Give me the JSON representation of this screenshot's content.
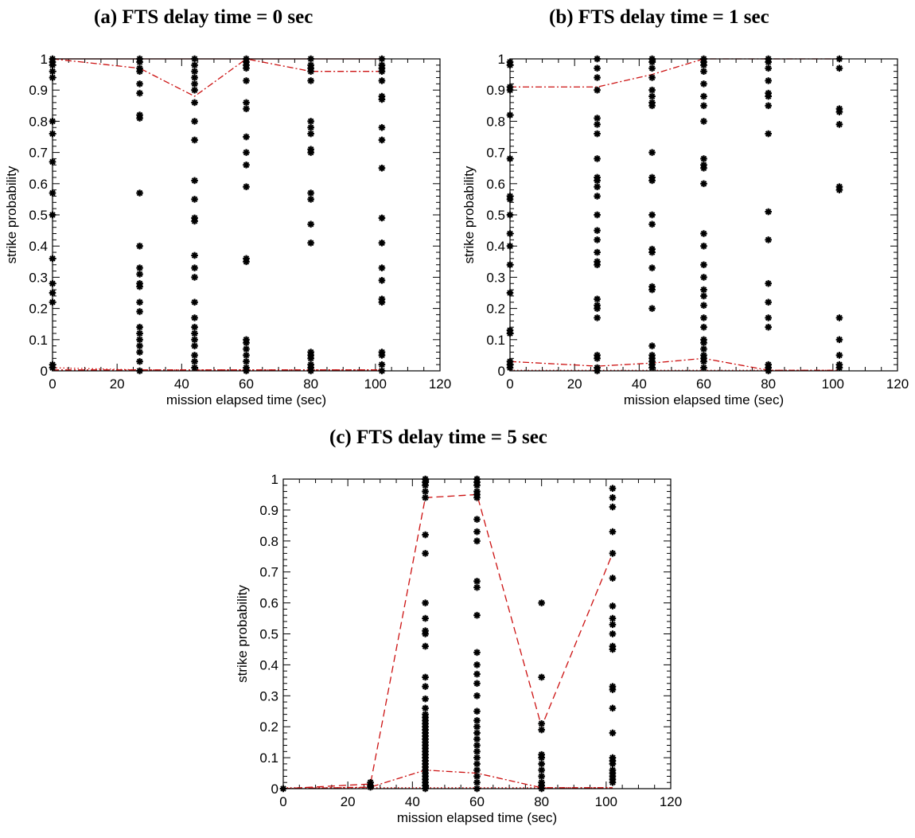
{
  "colors": {
    "points": "#000000",
    "lines": "#cc1111",
    "axes": "#000000"
  },
  "chart_data": [
    {
      "type": "scatter",
      "title": "(a)  FTS delay time = 0 sec",
      "xlabel": "mission elapsed time (sec)",
      "ylabel": "strike probability",
      "xlim": [
        0,
        120
      ],
      "ylim": [
        0,
        1
      ],
      "x_ticks": [
        "0",
        "20",
        "40",
        "60",
        "80",
        "100",
        "120"
      ],
      "y_ticks": [
        "0",
        "0.1",
        "0.2",
        "0.3",
        "0.4",
        "0.5",
        "0.6",
        "0.7",
        "0.8",
        "0.9",
        "1"
      ],
      "grid": false,
      "point_series": [
        {
          "x": 0,
          "y": [
            1.0,
            0.99,
            0.98,
            0.96,
            0.94,
            0.8,
            0.76,
            0.67,
            0.57,
            0.5,
            0.36,
            0.28,
            0.25,
            0.22,
            0.02,
            0.01
          ]
        },
        {
          "x": 27,
          "y": [
            1.0,
            0.99,
            0.97,
            0.96,
            0.92,
            0.89,
            0.82,
            0.81,
            0.57,
            0.4,
            0.33,
            0.31,
            0.28,
            0.27,
            0.22,
            0.19,
            0.14,
            0.12,
            0.1,
            0.08,
            0.06,
            0.03,
            0.0
          ]
        },
        {
          "x": 44,
          "y": [
            1.0,
            0.98,
            0.96,
            0.94,
            0.92,
            0.9,
            0.86,
            0.8,
            0.74,
            0.61,
            0.55,
            0.49,
            0.48,
            0.37,
            0.33,
            0.3,
            0.22,
            0.17,
            0.14,
            0.12,
            0.1,
            0.08,
            0.05,
            0.03,
            0.01
          ]
        },
        {
          "x": 60,
          "y": [
            1.0,
            0.99,
            0.98,
            0.97,
            0.93,
            0.86,
            0.84,
            0.75,
            0.7,
            0.66,
            0.59,
            0.36,
            0.35,
            0.1,
            0.09,
            0.07,
            0.05,
            0.03,
            0.01,
            0.0
          ]
        },
        {
          "x": 80,
          "y": [
            1.0,
            0.98,
            0.97,
            0.96,
            0.93,
            0.8,
            0.78,
            0.76,
            0.71,
            0.7,
            0.57,
            0.55,
            0.47,
            0.41,
            0.06,
            0.05,
            0.04,
            0.02,
            0.01,
            0.0
          ]
        },
        {
          "x": 102,
          "y": [
            1.0,
            0.98,
            0.97,
            0.96,
            0.93,
            0.88,
            0.87,
            0.78,
            0.74,
            0.65,
            0.49,
            0.41,
            0.33,
            0.29,
            0.23,
            0.22,
            0.06,
            0.05,
            0.02,
            0.0
          ]
        }
      ],
      "lines": [
        {
          "style": "dashdot",
          "x": [
            0,
            27,
            44,
            60,
            80,
            102
          ],
          "y": [
            1.0,
            0.97,
            0.88,
            1.0,
            0.96,
            0.96
          ]
        },
        {
          "style": "solid",
          "x": [
            0,
            27,
            44,
            60,
            80,
            102
          ],
          "y": [
            1.0,
            1.0,
            1.0,
            1.0,
            1.0,
            1.0
          ]
        },
        {
          "style": "dotted",
          "x": [
            0,
            27,
            44,
            60,
            80,
            102
          ],
          "y": [
            0.01,
            0.003,
            0.003,
            0.003,
            0.003,
            0.003
          ]
        },
        {
          "style": "dashdot",
          "x": [
            0,
            27,
            44,
            60,
            80,
            102
          ],
          "y": [
            0.003,
            0.003,
            0.003,
            0.003,
            0.003,
            0.003
          ]
        }
      ]
    },
    {
      "type": "scatter",
      "title": "(b)  FTS delay time = 1 sec",
      "xlabel": "mission elapsed time (sec)",
      "ylabel": "strike probability",
      "xlim": [
        0,
        120
      ],
      "ylim": [
        0,
        1
      ],
      "x_ticks": [
        "0",
        "20",
        "40",
        "60",
        "80",
        "100",
        "120"
      ],
      "y_ticks": [
        "0",
        "0.1",
        "0.2",
        "0.3",
        "0.4",
        "0.5",
        "0.6",
        "0.7",
        "0.8",
        "0.9",
        "1"
      ],
      "grid": false,
      "point_series": [
        {
          "x": 0,
          "y": [
            0.99,
            0.98,
            0.91,
            0.9,
            0.82,
            0.68,
            0.56,
            0.55,
            0.5,
            0.44,
            0.4,
            0.34,
            0.25,
            0.13,
            0.12,
            0.03,
            0.02,
            0.01
          ]
        },
        {
          "x": 27,
          "y": [
            1.0,
            0.97,
            0.94,
            0.9,
            0.81,
            0.79,
            0.76,
            0.68,
            0.62,
            0.61,
            0.59,
            0.56,
            0.5,
            0.45,
            0.42,
            0.38,
            0.35,
            0.34,
            0.23,
            0.21,
            0.2,
            0.17,
            0.05,
            0.04,
            0.01,
            0.0
          ]
        },
        {
          "x": 44,
          "y": [
            1.0,
            0.99,
            0.97,
            0.94,
            0.9,
            0.88,
            0.86,
            0.85,
            0.7,
            0.62,
            0.61,
            0.5,
            0.47,
            0.39,
            0.38,
            0.33,
            0.27,
            0.26,
            0.2,
            0.08,
            0.05,
            0.04,
            0.03,
            0.02,
            0.01
          ]
        },
        {
          "x": 60,
          "y": [
            1.0,
            0.99,
            0.98,
            0.96,
            0.92,
            0.88,
            0.85,
            0.8,
            0.68,
            0.66,
            0.65,
            0.6,
            0.44,
            0.4,
            0.34,
            0.3,
            0.26,
            0.24,
            0.21,
            0.17,
            0.14,
            0.1,
            0.09,
            0.07,
            0.05,
            0.04,
            0.03,
            0.01
          ]
        },
        {
          "x": 80,
          "y": [
            1.0,
            0.99,
            0.97,
            0.93,
            0.89,
            0.88,
            0.85,
            0.76,
            0.51,
            0.42,
            0.28,
            0.22,
            0.17,
            0.14,
            0.02,
            0.01,
            0.0
          ]
        },
        {
          "x": 102,
          "y": [
            1.0,
            0.97,
            0.84,
            0.83,
            0.79,
            0.59,
            0.58,
            0.17,
            0.1,
            0.05,
            0.02,
            0.01
          ]
        }
      ],
      "lines": [
        {
          "style": "dashdot",
          "x": [
            0,
            27,
            44,
            60,
            80,
            102
          ],
          "y": [
            0.91,
            0.91,
            0.95,
            1.0,
            1.0,
            1.0
          ]
        },
        {
          "style": "dashdot",
          "x": [
            0,
            27,
            44,
            60,
            80,
            102
          ],
          "y": [
            0.03,
            0.015,
            0.025,
            0.04,
            0.002,
            0.002
          ]
        },
        {
          "style": "dotted",
          "x": [
            0,
            27,
            44,
            60,
            80,
            102
          ],
          "y": [
            0.002,
            0.002,
            0.002,
            0.002,
            0.002,
            0.002
          ]
        }
      ]
    },
    {
      "type": "scatter",
      "title": "(c)  FTS delay time = 5 sec",
      "xlabel": "mission elapsed time (sec)",
      "ylabel": "strike probability",
      "xlim": [
        0,
        120
      ],
      "ylim": [
        0,
        1
      ],
      "x_ticks": [
        "0",
        "20",
        "40",
        "60",
        "80",
        "100",
        "120"
      ],
      "y_ticks": [
        "0",
        "0.1",
        "0.2",
        "0.3",
        "0.4",
        "0.5",
        "0.6",
        "0.7",
        "0.8",
        "0.9",
        "1"
      ],
      "grid": false,
      "point_series": [
        {
          "x": 0,
          "y": [
            0.0
          ]
        },
        {
          "x": 27,
          "y": [
            0.02,
            0.01,
            0.005
          ]
        },
        {
          "x": 44,
          "y": [
            1.0,
            0.99,
            0.98,
            0.96,
            0.94,
            0.82,
            0.76,
            0.6,
            0.55,
            0.51,
            0.5,
            0.46,
            0.36,
            0.33,
            0.29,
            0.26,
            0.24,
            0.23,
            0.22,
            0.21,
            0.2,
            0.19,
            0.18,
            0.17,
            0.16,
            0.15,
            0.14,
            0.13,
            0.12,
            0.11,
            0.1,
            0.09,
            0.08,
            0.07,
            0.06,
            0.05,
            0.04,
            0.03,
            0.02,
            0.01,
            0.0
          ]
        },
        {
          "x": 60,
          "y": [
            1.0,
            0.99,
            0.98,
            0.96,
            0.95,
            0.94,
            0.87,
            0.83,
            0.8,
            0.67,
            0.65,
            0.56,
            0.44,
            0.4,
            0.37,
            0.34,
            0.3,
            0.25,
            0.22,
            0.2,
            0.18,
            0.16,
            0.14,
            0.12,
            0.1,
            0.08,
            0.06,
            0.04,
            0.02,
            0.0
          ]
        },
        {
          "x": 80,
          "y": [
            0.6,
            0.36,
            0.21,
            0.19,
            0.11,
            0.1,
            0.08,
            0.06,
            0.04,
            0.02,
            0.01,
            0.0
          ]
        },
        {
          "x": 102,
          "y": [
            0.97,
            0.94,
            0.91,
            0.83,
            0.76,
            0.68,
            0.59,
            0.55,
            0.53,
            0.5,
            0.46,
            0.45,
            0.33,
            0.32,
            0.26,
            0.18,
            0.1,
            0.09,
            0.08,
            0.06,
            0.05,
            0.04,
            0.03,
            0.02
          ]
        }
      ],
      "lines": [
        {
          "style": "dashed",
          "x": [
            0,
            27,
            44,
            60,
            80,
            102
          ],
          "y": [
            0.0,
            0.015,
            0.94,
            0.95,
            0.2,
            0.76
          ]
        },
        {
          "style": "dashdot",
          "x": [
            0,
            27,
            44,
            60,
            80,
            102
          ],
          "y": [
            0.0,
            0.005,
            0.06,
            0.05,
            0.003,
            0.003
          ]
        },
        {
          "style": "dotted",
          "x": [
            0,
            27,
            44,
            60,
            80,
            102
          ],
          "y": [
            0.003,
            0.003,
            0.003,
            0.003,
            0.003,
            0.003
          ]
        }
      ]
    }
  ]
}
